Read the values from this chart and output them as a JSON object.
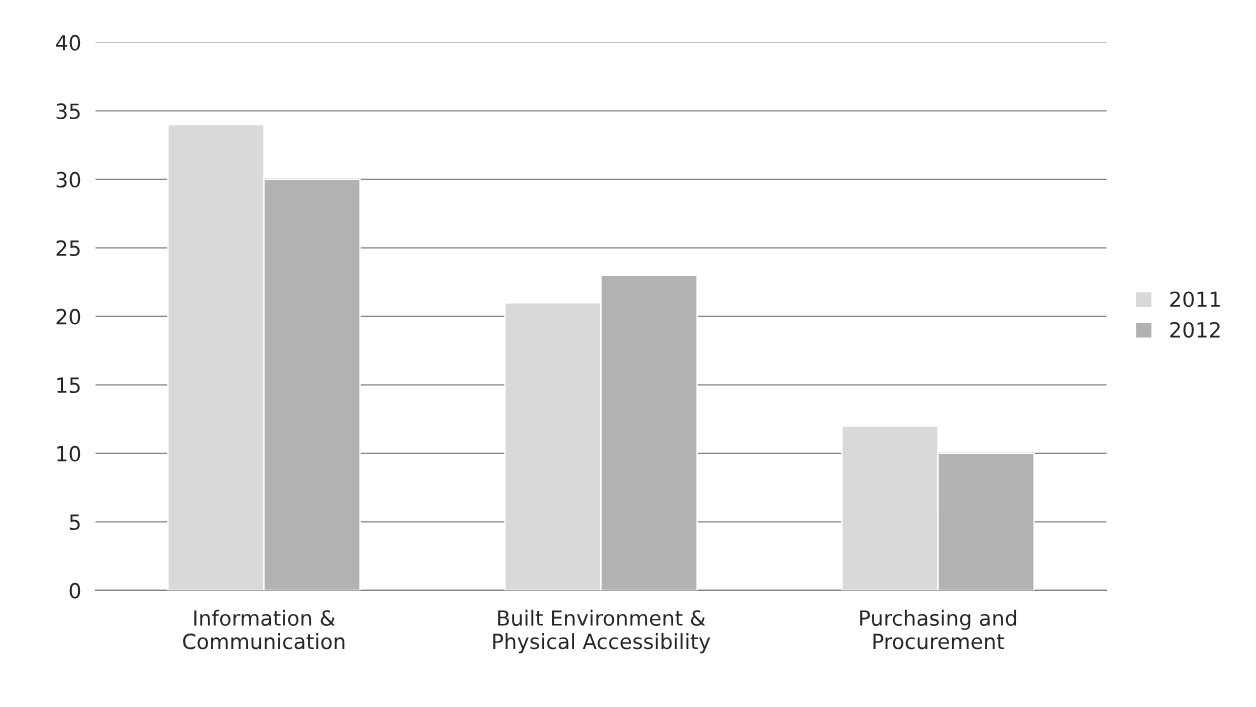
{
  "chart_data": {
    "type": "bar",
    "categories": [
      "Information &\nCommunication",
      "Built Environment &\nPhysical Accessibility",
      "Purchasing and\nProcurement"
    ],
    "series": [
      {
        "name": "2011",
        "color": "#d9d9d9",
        "values": [
          34,
          21,
          12
        ]
      },
      {
        "name": "2012",
        "color": "#b2b2b2",
        "values": [
          30,
          23,
          10
        ]
      }
    ],
    "ylim": [
      0,
      40
    ],
    "yticks": [
      0,
      5,
      10,
      15,
      20,
      25,
      30,
      35,
      40
    ],
    "grid": "y",
    "legend": "right"
  }
}
